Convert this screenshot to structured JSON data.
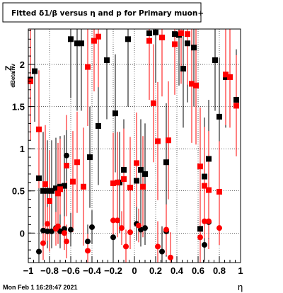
{
  "chart_data": {
    "type": "scatter",
    "title": "Fitted δ1/β versus η and p for Primary muon+",
    "xlabel": "η",
    "ylabel": "Z",
    "ylabel_sub": "dBetainv",
    "timestamp": "Mon Feb  1 16:28:47 2021",
    "xlim": [
      -1,
      1
    ],
    "ylim": [
      -0.35,
      2.42
    ],
    "xticks": [
      -1,
      -0.8,
      -0.6,
      -0.4,
      -0.2,
      0,
      0.2,
      0.4,
      0.6,
      0.8,
      1
    ],
    "xtick_labels": [
      "−1",
      "−0.8",
      "−0.6",
      "−0.4",
      "−0.2",
      "0",
      "0.2",
      "0.4",
      "0.6",
      "0.8",
      "1"
    ],
    "yticks": [
      0,
      0.5,
      1,
      1.5,
      2
    ],
    "ytick_labels": [
      "0",
      "0.5",
      "1",
      "1.5",
      "2"
    ],
    "grid": true,
    "colors": {
      "black": "#000000",
      "red": "#ff0000"
    },
    "series": [
      {
        "color": "black",
        "marker": "square",
        "points": [
          [
            -0.98,
            1.82,
            0.6
          ],
          [
            -0.94,
            1.92,
            0.6
          ],
          [
            -0.9,
            0.65,
            0.7
          ],
          [
            -0.86,
            0.5,
            0.7
          ],
          [
            -0.82,
            0.5,
            0.6
          ],
          [
            -0.78,
            0.5,
            0.6
          ],
          [
            -0.74,
            0.53,
            0.6
          ],
          [
            -0.7,
            0.55,
            0.6
          ],
          [
            -0.66,
            0.56,
            0.6
          ],
          [
            -0.6,
            2.3,
            0.7
          ],
          [
            -0.54,
            2.25,
            0.8
          ],
          [
            -0.5,
            2.25,
            0.8
          ],
          [
            -0.42,
            0.9,
            0.6
          ],
          [
            -0.34,
            1.27,
            0.7
          ],
          [
            -0.26,
            2.05,
            0.7
          ],
          [
            -0.18,
            1.42,
            0.7
          ],
          [
            -0.14,
            0.6,
            0.6
          ],
          [
            -0.1,
            0.75,
            0.6
          ],
          [
            -0.06,
            2.3,
            0.8
          ],
          [
            0.02,
            0.62,
            0.6
          ],
          [
            0.06,
            0.75,
            0.6
          ],
          [
            0.1,
            0.7,
            0.6
          ],
          [
            0.14,
            2.37,
            0.6
          ],
          [
            0.2,
            2.38,
            0.6
          ],
          [
            0.3,
            0.84,
            0.7
          ],
          [
            0.38,
            2.36,
            0.6
          ],
          [
            0.42,
            2.35,
            0.6
          ],
          [
            0.46,
            1.95,
            0.7
          ],
          [
            0.5,
            2.25,
            0.7
          ],
          [
            0.56,
            2.2,
            0.7
          ],
          [
            0.62,
            0.05,
            0.7
          ],
          [
            0.66,
            0.67,
            0.7
          ],
          [
            0.7,
            0.88,
            0.7
          ],
          [
            0.76,
            2.05,
            0.6
          ],
          [
            0.8,
            1.38,
            0.7
          ],
          [
            0.86,
            1.85,
            0.6
          ],
          [
            0.96,
            1.58,
            0.6
          ]
        ]
      },
      {
        "color": "red",
        "marker": "square",
        "points": [
          [
            -0.98,
            1.8,
            0.7
          ],
          [
            -0.9,
            1.23,
            0.7
          ],
          [
            -0.84,
            0.58,
            0.7
          ],
          [
            -0.8,
            0.38,
            0.6
          ],
          [
            -0.72,
            0.47,
            0.6
          ],
          [
            -0.7,
            0.52,
            0.6
          ],
          [
            -0.64,
            0.8,
            0.6
          ],
          [
            -0.58,
            0.61,
            0.6
          ],
          [
            -0.54,
            0.84,
            0.6
          ],
          [
            -0.48,
            0.55,
            0.7
          ],
          [
            -0.44,
            1.97,
            0.7
          ],
          [
            -0.38,
            2.28,
            0.6
          ],
          [
            -0.34,
            2.33,
            0.6
          ],
          [
            -0.2,
            0.59,
            0.6
          ],
          [
            -0.16,
            0.6,
            0.6
          ],
          [
            -0.1,
            0.64,
            0.6
          ],
          [
            -0.04,
            0.54,
            0.6
          ],
          [
            0.02,
            0.83,
            0.6
          ],
          [
            0.08,
            0.55,
            0.6
          ],
          [
            0.14,
            2.28,
            0.7
          ],
          [
            0.18,
            1.54,
            0.7
          ],
          [
            0.22,
            1.09,
            0.7
          ],
          [
            0.26,
            2.32,
            0.7
          ],
          [
            0.32,
            1.1,
            0.7
          ],
          [
            0.38,
            2.24,
            0.6
          ],
          [
            0.44,
            2.37,
            0.6
          ],
          [
            0.5,
            2.36,
            0.6
          ],
          [
            0.54,
            1.77,
            0.7
          ],
          [
            0.58,
            1.75,
            0.7
          ],
          [
            0.62,
            0.79,
            0.7
          ],
          [
            0.66,
            0.56,
            0.7
          ],
          [
            0.7,
            0.51,
            0.7
          ],
          [
            0.8,
            0.49,
            0.6
          ],
          [
            0.86,
            1.88,
            0.6
          ],
          [
            0.9,
            1.85,
            0.6
          ],
          [
            0.96,
            1.51,
            0.6
          ]
        ]
      },
      {
        "color": "black",
        "marker": "circle",
        "points": [
          [
            -0.9,
            -0.22,
            0.2
          ],
          [
            -0.86,
            0.03,
            0.2
          ],
          [
            -0.82,
            0.02,
            0.2
          ],
          [
            -0.78,
            0.02,
            0.2
          ],
          [
            -0.74,
            0.06,
            0.2
          ],
          [
            -0.7,
            0.02,
            0.2
          ],
          [
            -0.66,
            0.05,
            0.2
          ],
          [
            -0.64,
            0.92,
            0.3
          ],
          [
            -0.6,
            0.04,
            0.2
          ],
          [
            -0.44,
            -0.1,
            0.2
          ],
          [
            -0.4,
            0.07,
            0.2
          ],
          [
            -0.2,
            -0.05,
            0.3
          ],
          [
            0.02,
            0.11,
            0.2
          ],
          [
            0.06,
            0.04,
            0.2
          ],
          [
            0.1,
            0.06,
            0.2
          ],
          [
            0.26,
            -0.22,
            0.3
          ],
          [
            0.3,
            0.02,
            0.3
          ],
          [
            0.66,
            -0.14,
            0.2
          ],
          [
            0.7,
            0.13,
            0.2
          ]
        ]
      },
      {
        "color": "red",
        "marker": "circle",
        "points": [
          [
            -0.86,
            -0.12,
            0.2
          ],
          [
            -0.82,
            0.11,
            0.2
          ],
          [
            -0.74,
            0.05,
            0.2
          ],
          [
            -0.72,
            0.08,
            0.2
          ],
          [
            -0.66,
            0.0,
            0.2
          ],
          [
            -0.64,
            -0.1,
            0.2
          ],
          [
            -0.44,
            -0.21,
            0.2
          ],
          [
            -0.2,
            0.15,
            0.2
          ],
          [
            -0.16,
            0.15,
            0.2
          ],
          [
            -0.12,
            0.06,
            0.2
          ],
          [
            -0.08,
            -0.16,
            0.2
          ],
          [
            -0.04,
            0.01,
            0.2
          ],
          [
            0.04,
            0.09,
            0.2
          ],
          [
            0.22,
            -0.16,
            0.3
          ],
          [
            0.3,
            0.04,
            0.3
          ],
          [
            0.34,
            -0.29,
            0.3
          ],
          [
            0.62,
            -0.05,
            0.3
          ],
          [
            0.66,
            0.14,
            0.2
          ],
          [
            0.7,
            0.14,
            0.2
          ],
          [
            0.8,
            0.06,
            0.2
          ]
        ]
      }
    ]
  }
}
